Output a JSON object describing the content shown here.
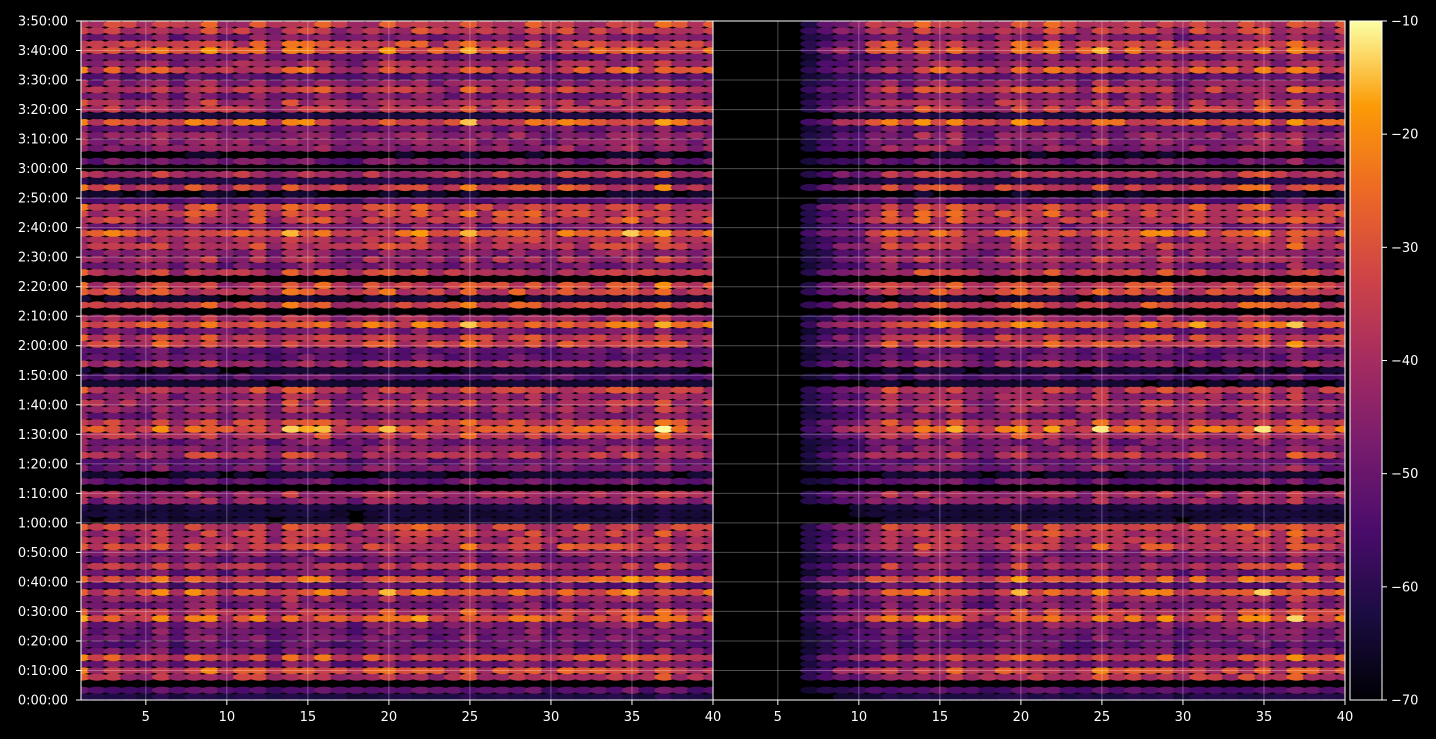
{
  "chart_data": {
    "type": "heatmap",
    "title": "",
    "xlabel": "",
    "ylabel": "",
    "background": "#000000",
    "colormap": "inferno",
    "grid": true,
    "panels": [
      {
        "name": "",
        "xlim": [
          1,
          40
        ],
        "xticks": [
          5,
          10,
          15,
          20,
          25,
          30,
          35,
          40
        ],
        "xtick_labels": [
          "5",
          "10",
          "15",
          "20",
          "25",
          "30",
          "35",
          "40"
        ],
        "blank_columns": []
      },
      {
        "name": "",
        "xlim": [
          1,
          40
        ],
        "xticks": [
          5,
          10,
          15,
          20,
          25,
          30,
          35,
          40
        ],
        "xtick_labels": [
          "5",
          "10",
          "15",
          "20",
          "25",
          "30",
          "35",
          "40"
        ],
        "blank_columns": [
          1,
          2,
          3,
          4,
          5,
          6
        ]
      }
    ],
    "y_axis": {
      "min_seconds": 0,
      "max_seconds": 13800,
      "tick_labels": [
        "0:00:00",
        "0:10:00",
        "0:20:00",
        "0:30:00",
        "0:40:00",
        "0:50:00",
        "1:00:00",
        "1:10:00",
        "1:20:00",
        "1:30:00",
        "1:40:00",
        "1:50:00",
        "2:00:00",
        "2:10:00",
        "2:20:00",
        "2:30:00",
        "2:40:00",
        "2:50:00",
        "3:00:00",
        "3:10:00",
        "3:20:00",
        "3:30:00",
        "3:40:00",
        "3:50:00"
      ]
    },
    "colorbar": {
      "min": -70,
      "max": -10,
      "ticks": [
        -10,
        -20,
        -30,
        -40,
        -50,
        -60,
        -70
      ],
      "tick_labels": [
        "−10",
        "−20",
        "−30",
        "−40",
        "−50",
        "−60",
        "−70"
      ]
    }
  }
}
